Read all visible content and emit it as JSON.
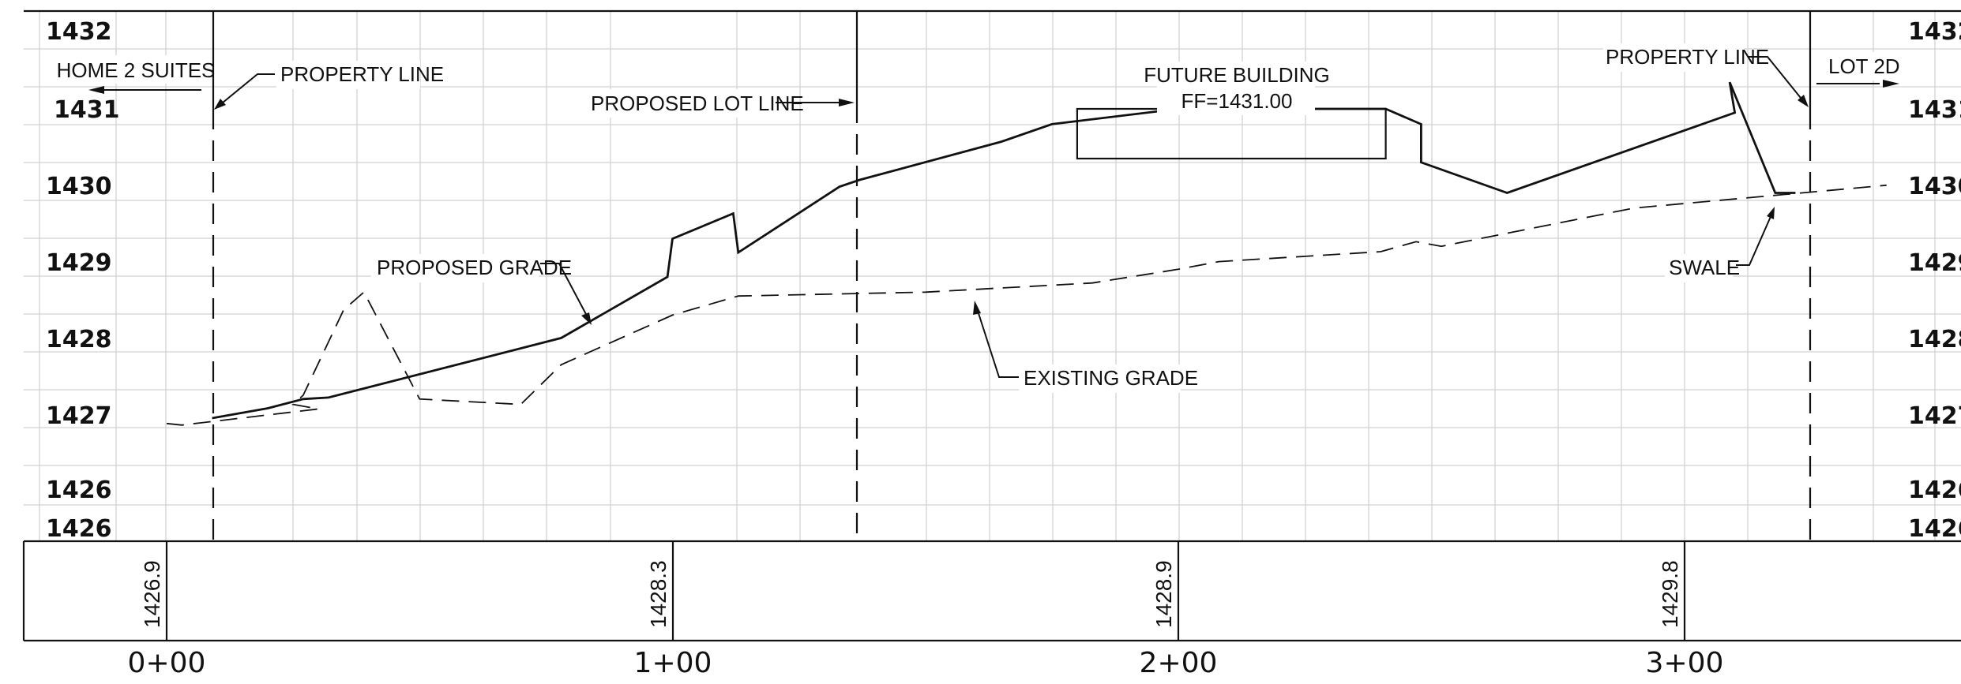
{
  "elevation_labels": [
    "1432",
    "1431",
    "1430",
    "1429",
    "1428",
    "1427",
    "1426",
    "1426"
  ],
  "station_labels": [
    "0+00",
    "1+00",
    "2+00",
    "3+00"
  ],
  "band_values": [
    "1426.9",
    "1428.3",
    "1428.9",
    "1429.8"
  ],
  "notes": {
    "home2": "HOME 2 SUITES",
    "property_line_left": "PROPERTY LINE",
    "proposed_lot_line": "PROPOSED LOT LINE",
    "future_building": "FUTURE BUILDING",
    "finished_floor": "FF=1431.00",
    "property_line_right": "PROPERTY LINE",
    "lot_2d": "LOT 2D",
    "proposed_grade": "PROPOSED GRADE",
    "existing_grade": "EXISTING GRADE",
    "swale": "SWALE"
  },
  "chart_data": {
    "type": "line",
    "xlabel": "",
    "ylabel": "",
    "xlim": [
      0,
      340
    ],
    "ylim": [
      1425.7,
      1432.2
    ],
    "x_ticks": [
      "0+00",
      "1+00",
      "2+00",
      "3+00"
    ],
    "y_ticks": [
      1432,
      1431,
      1430,
      1429,
      1428,
      1427,
      1426
    ],
    "grid": true,
    "series": [
      {
        "name": "EXISTING GRADE",
        "style": "dashed",
        "points": [
          [
            0,
            1426.88
          ],
          [
            3,
            1426.86
          ],
          [
            30,
            1427.07
          ],
          [
            25,
            1427.13
          ],
          [
            27,
            1427.25
          ],
          [
            35,
            1428.37
          ],
          [
            39,
            1428.6
          ],
          [
            50,
            1427.2
          ],
          [
            70,
            1427.13
          ],
          [
            78,
            1427.65
          ],
          [
            100,
            1428.3
          ],
          [
            113,
            1428.55
          ],
          [
            150,
            1428.6
          ],
          [
            183,
            1428.72
          ],
          [
            200,
            1428.9
          ],
          [
            208,
            1429.0
          ],
          [
            240,
            1429.13
          ],
          [
            247,
            1429.26
          ],
          [
            252,
            1429.2
          ],
          [
            290,
            1429.7
          ],
          [
            320,
            1429.88
          ],
          [
            340,
            1430.0
          ]
        ]
      },
      {
        "name": "PROPOSED GRADE",
        "style": "solid",
        "points": [
          [
            9,
            1426.95
          ],
          [
            20,
            1427.08
          ],
          [
            27,
            1427.2
          ],
          [
            32,
            1427.22
          ],
          [
            78,
            1428.0
          ],
          [
            99,
            1428.8
          ],
          [
            100,
            1429.3
          ],
          [
            112,
            1429.63
          ],
          [
            113,
            1429.12
          ],
          [
            133,
            1429.98
          ],
          [
            137,
            1430.07
          ],
          [
            165,
            1430.57
          ],
          [
            175,
            1430.8
          ],
          [
            200,
            1431.0
          ],
          [
            200,
            1431.0
          ],
          [
            241,
            1431.0
          ],
          [
            248,
            1430.8
          ],
          [
            248,
            1430.3
          ],
          [
            265,
            1429.9
          ],
          [
            310,
            1430.95
          ],
          [
            309,
            1431.35
          ],
          [
            318,
            1429.9
          ],
          [
            322,
            1429.9
          ]
        ]
      }
    ],
    "structures": [
      {
        "label": "FUTURE BUILDING",
        "finished_floor": 1431.0,
        "x_start": 180,
        "x_end": 241
      }
    ],
    "band_values": [
      {
        "station": 0,
        "value": 1426.9
      },
      {
        "station": 100,
        "value": 1428.3
      },
      {
        "station": 200,
        "value": 1428.9
      },
      {
        "station": 300,
        "value": 1429.8
      }
    ]
  }
}
